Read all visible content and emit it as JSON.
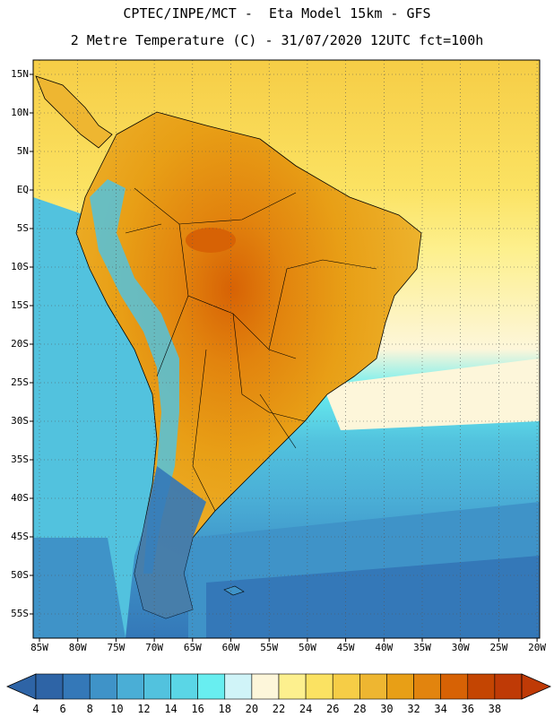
{
  "header": {
    "line1": "CPTEC/INPE/MCT -  Eta Model 15km - GFS",
    "line2": "2 Metre Temperature (C) - 31/07/2020 12UTC fct=100h"
  },
  "map": {
    "lat_labels": [
      "15N",
      "10N",
      "5N",
      "EQ",
      "5S",
      "10S",
      "15S",
      "20S",
      "25S",
      "30S",
      "35S",
      "40S",
      "45S",
      "50S",
      "55S"
    ],
    "lon_labels": [
      "85W",
      "80W",
      "75W",
      "70W",
      "65W",
      "60W",
      "55W",
      "50W",
      "45W",
      "40W",
      "35W",
      "30W",
      "25W",
      "20W"
    ]
  },
  "colorbar": {
    "labels": [
      "4",
      "6",
      "8",
      "10",
      "12",
      "14",
      "16",
      "18",
      "20",
      "22",
      "24",
      "26",
      "28",
      "30",
      "32",
      "34",
      "36",
      "38"
    ],
    "colors": [
      "#2e64a6",
      "#3478b8",
      "#3f93c8",
      "#4aaed6",
      "#52c2de",
      "#5ad6e6",
      "#68eef0",
      "#d0f4f8",
      "#fdf6da",
      "#fdf08e",
      "#fbe262",
      "#f6cd46",
      "#eeb631",
      "#e89f16",
      "#e2840e",
      "#d76205",
      "#c44502",
      "#bf3a06"
    ]
  }
}
